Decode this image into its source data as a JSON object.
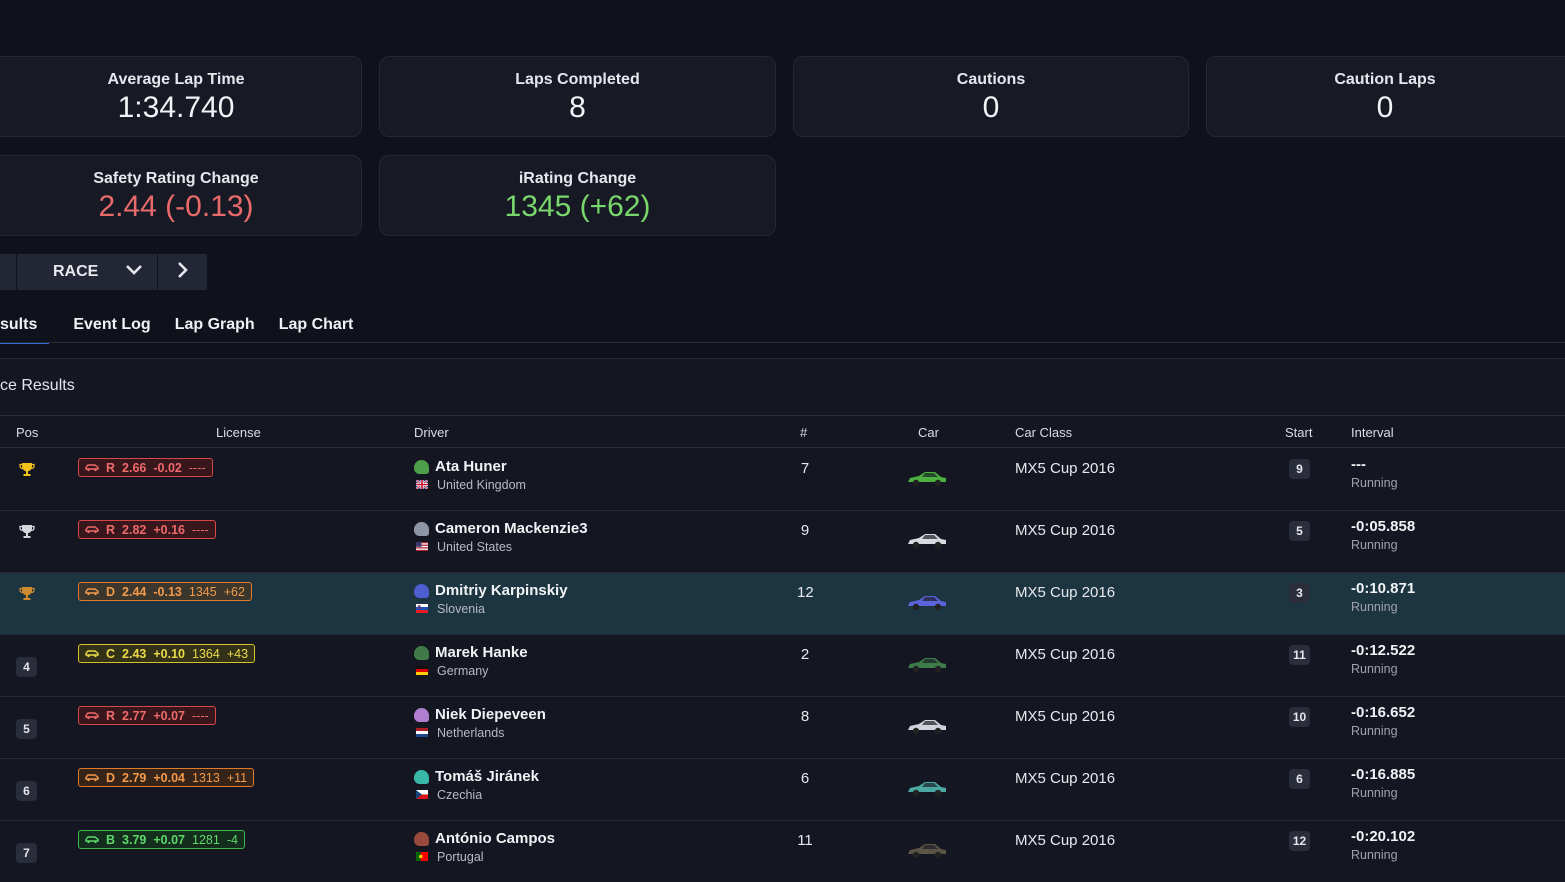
{
  "stats": {
    "avg_lap_label": "Average Lap Time",
    "avg_lap_value": "1:34.740",
    "laps_label": "Laps Completed",
    "laps_value": "8",
    "cautions_label": "Cautions",
    "cautions_value": "0",
    "caution_laps_label": "Caution Laps",
    "caution_laps_value": "0",
    "sr_label": "Safety Rating Change",
    "sr_value": "2.44 (-0.13)",
    "ir_label": "iRating Change",
    "ir_value": "1345 (+62)"
  },
  "session": {
    "selected": "RACE"
  },
  "tabs": [
    "sults",
    "Event Log",
    "Lap Graph",
    "Lap Chart"
  ],
  "results": {
    "title": "ce Results",
    "columns": {
      "pos": "Pos",
      "license": "License",
      "driver": "Driver",
      "num": "#",
      "car": "Car",
      "car_class": "Car Class",
      "start": "Start",
      "interval": "Interval"
    },
    "rows": [
      {
        "pos": "",
        "trophy": "gold",
        "lic_class": "R",
        "lic_sr": "2.66",
        "lic_sr_change": "-0.02",
        "lic_ir": "----",
        "lic_ir_change": "",
        "name": "Ata Huner",
        "country": "United Kingdom",
        "flag": "gb",
        "helmet": "#4f9e4a",
        "num": "7",
        "car_color": "#4caf3f",
        "car_class": "MX5 Cup 2016",
        "start": "9",
        "interval": "---",
        "status": "Running"
      },
      {
        "pos": "",
        "trophy": "silver",
        "lic_class": "R",
        "lic_sr": "2.82",
        "lic_sr_change": "+0.16",
        "lic_ir": "----",
        "lic_ir_change": "",
        "name": "Cameron Mackenzie3",
        "country": "United States",
        "flag": "us",
        "helmet": "#8e95a4",
        "num": "9",
        "car_color": "#d9dbe0",
        "car_class": "MX5 Cup 2016",
        "start": "5",
        "interval": "-0:05.858",
        "status": "Running"
      },
      {
        "pos": "",
        "trophy": "bronze",
        "lic_class": "D",
        "lic_sr": "2.44",
        "lic_sr_change": "-0.13",
        "lic_ir": "1345",
        "lic_ir_change": "+62",
        "name": "Dmitriy Karpinskiy",
        "country": "Slovenia",
        "flag": "si",
        "helmet": "#4d5fd0",
        "num": "12",
        "car_color": "#5a63d9",
        "car_class": "MX5 Cup 2016",
        "start": "3",
        "interval": "-0:10.871",
        "status": "Running",
        "highlight": true
      },
      {
        "pos": "4",
        "trophy": "",
        "lic_class": "C",
        "lic_sr": "2.43",
        "lic_sr_change": "+0.10",
        "lic_ir": "1364",
        "lic_ir_change": "+43",
        "name": "Marek Hanke",
        "country": "Germany",
        "flag": "de",
        "helmet": "#3f7a48",
        "num": "2",
        "car_color": "#3e7d4a",
        "car_class": "MX5 Cup 2016",
        "start": "11",
        "interval": "-0:12.522",
        "status": "Running"
      },
      {
        "pos": "5",
        "trophy": "",
        "lic_class": "R",
        "lic_sr": "2.77",
        "lic_sr_change": "+0.07",
        "lic_ir": "----",
        "lic_ir_change": "",
        "name": "Niek Diepeveen",
        "country": "Netherlands",
        "flag": "nl",
        "helmet": "#b07fd0",
        "num": "8",
        "car_color": "#cfd2d8",
        "car_class": "MX5 Cup 2016",
        "start": "10",
        "interval": "-0:16.652",
        "status": "Running"
      },
      {
        "pos": "6",
        "trophy": "",
        "lic_class": "D",
        "lic_sr": "2.79",
        "lic_sr_change": "+0.04",
        "lic_ir": "1313",
        "lic_ir_change": "+11",
        "name": "Tomáš Jiránek",
        "country": "Czechia",
        "flag": "cz",
        "helmet": "#38b6a8",
        "num": "6",
        "car_color": "#4aa8a0",
        "car_class": "MX5 Cup 2016",
        "start": "6",
        "interval": "-0:16.885",
        "status": "Running"
      },
      {
        "pos": "7",
        "trophy": "",
        "lic_class": "B",
        "lic_sr": "3.79",
        "lic_sr_change": "+0.07",
        "lic_ir": "1281",
        "lic_ir_change": "-4",
        "name": "António Campos",
        "country": "Portugal",
        "flag": "pt",
        "helmet": "#9a4a3c",
        "num": "11",
        "car_color": "#5b5548",
        "car_class": "MX5 Cup 2016",
        "start": "12",
        "interval": "-0:20.102",
        "status": "Running"
      }
    ]
  }
}
